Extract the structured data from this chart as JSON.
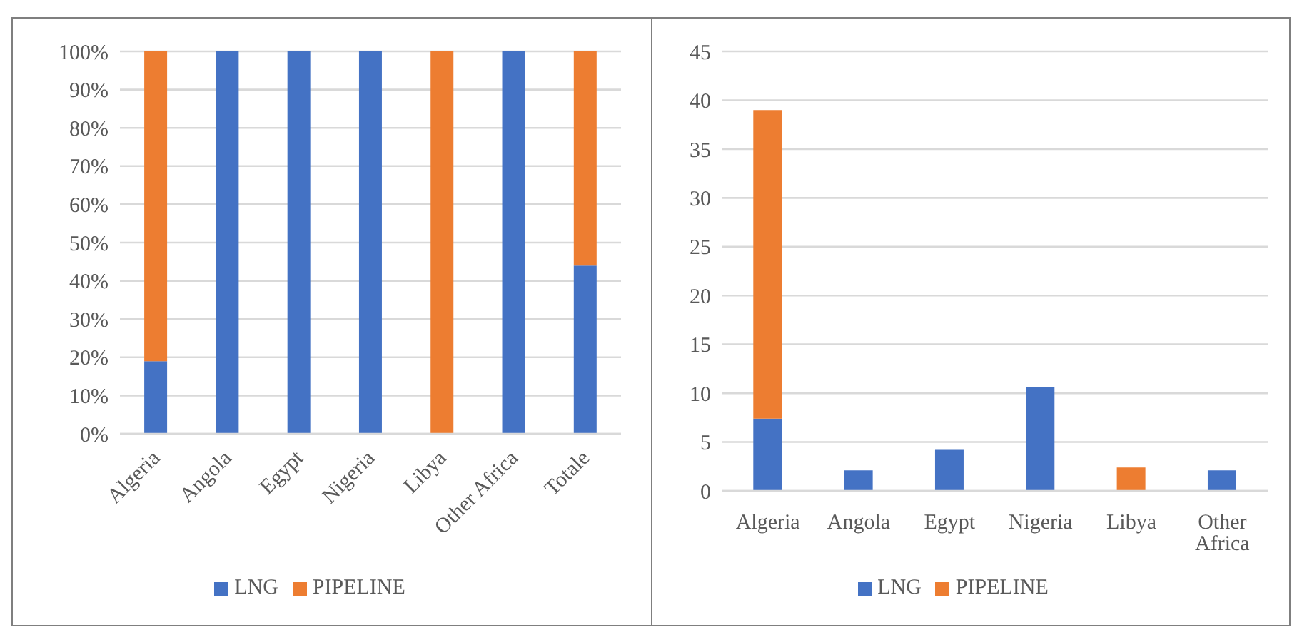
{
  "chart_data": [
    {
      "type": "bar",
      "stacked": true,
      "categories": [
        "Algeria",
        "Angola",
        "Egypt",
        "Nigeria",
        "Libya",
        "Other Africa",
        "Totale"
      ],
      "series": [
        {
          "name": "LNG",
          "color": "#4472c4",
          "values": [
            19,
            100,
            100,
            100,
            0,
            100,
            44
          ]
        },
        {
          "name": "PIPELINE",
          "color": "#ed7d31",
          "values": [
            81,
            0,
            0,
            0,
            100,
            0,
            56
          ]
        }
      ],
      "ylim": [
        0,
        100
      ],
      "yticks": [
        {
          "value": 0,
          "label": "0%"
        },
        {
          "value": 10,
          "label": "10%"
        },
        {
          "value": 20,
          "label": "20%"
        },
        {
          "value": 30,
          "label": "30%"
        },
        {
          "value": 40,
          "label": "40%"
        },
        {
          "value": 50,
          "label": "50%"
        },
        {
          "value": 60,
          "label": "60%"
        },
        {
          "value": 70,
          "label": "70%"
        },
        {
          "value": 80,
          "label": "80%"
        },
        {
          "value": 90,
          "label": "90%"
        },
        {
          "value": 100,
          "label": "100%"
        }
      ],
      "grid": "y",
      "legend": "bottom"
    },
    {
      "type": "bar",
      "stacked": true,
      "categories": [
        "Algeria",
        "Angola",
        "Egypt",
        "Nigeria",
        "Libya",
        "Other Africa"
      ],
      "series": [
        {
          "name": "LNG",
          "color": "#4472c4",
          "values": [
            7.4,
            2.1,
            4.2,
            10.6,
            0,
            2.1
          ]
        },
        {
          "name": "PIPELINE",
          "color": "#ed7d31",
          "values": [
            31.6,
            0,
            0,
            0,
            2.4,
            0
          ]
        }
      ],
      "ylim": [
        0,
        45
      ],
      "yticks": [
        0,
        5,
        10,
        15,
        20,
        25,
        30,
        35,
        40,
        45
      ],
      "grid": "y",
      "legend": "bottom"
    }
  ]
}
